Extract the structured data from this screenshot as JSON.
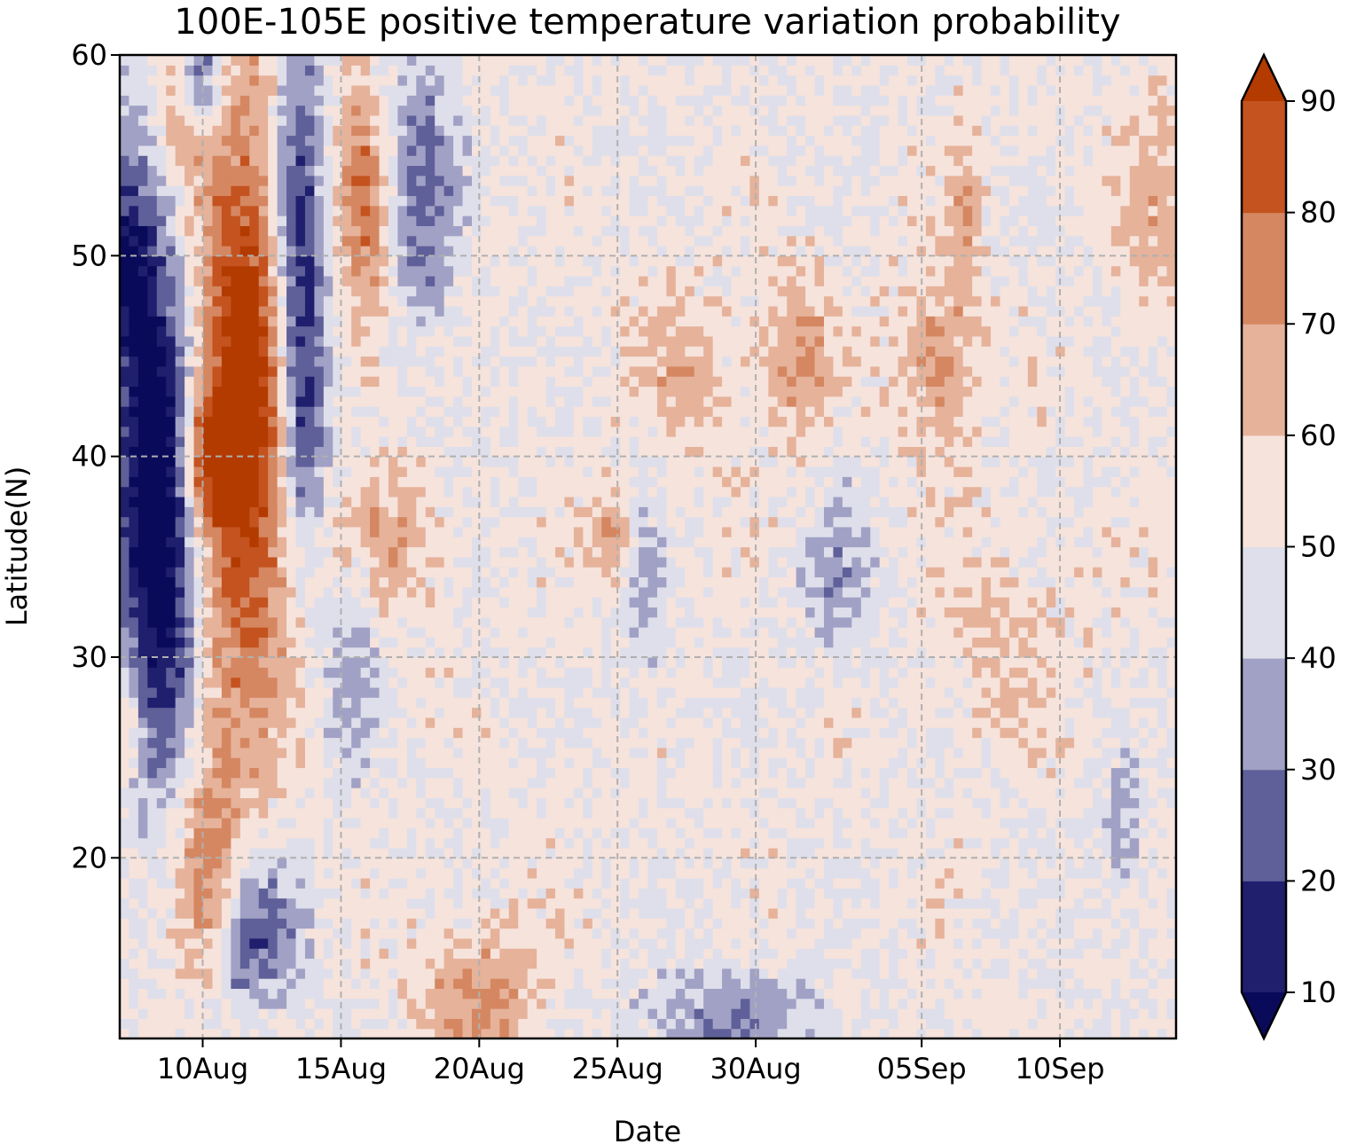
{
  "chart_data": {
    "type": "heatmap",
    "title": "100E-105E positive temperature variation probability",
    "xlabel": "Date",
    "ylabel": "Latitude(N)",
    "x_ticks": [
      {
        "label": "10Aug",
        "day": 3
      },
      {
        "label": "15Aug",
        "day": 8
      },
      {
        "label": "20Aug",
        "day": 13
      },
      {
        "label": "25Aug",
        "day": 18
      },
      {
        "label": "30Aug",
        "day": 23
      },
      {
        "label": "05Sep",
        "day": 29
      },
      {
        "label": "10Sep",
        "day": 34
      }
    ],
    "xlim_days": [
      0,
      38.2
    ],
    "x_origin_date": "07Aug",
    "y_ticks": [
      20,
      30,
      40,
      50,
      60
    ],
    "ylim": [
      11,
      60
    ],
    "grid": true,
    "colorbar": {
      "levels": [
        10,
        20,
        30,
        40,
        50,
        60,
        70,
        80,
        90
      ],
      "tick_labels": [
        "10",
        "20",
        "30",
        "40",
        "50",
        "60",
        "70",
        "80",
        "90"
      ],
      "colors": [
        "#0a0a5a",
        "#1f1f6e",
        "#5f5f99",
        "#a1a1c6",
        "#dedfea",
        "#f6e3dc",
        "#e6b29a",
        "#d58761",
        "#c4531f",
        "#b33b00"
      ],
      "extend": "both"
    },
    "blobs": [
      {
        "x": 1.0,
        "y": 40,
        "sx": 1.0,
        "sy": 10,
        "v": -40
      },
      {
        "x": 1.8,
        "y": 35,
        "sx": 0.8,
        "sy": 7,
        "v": -30
      },
      {
        "x": 0.3,
        "y": 50,
        "sx": 0.7,
        "sy": 4,
        "v": -25
      },
      {
        "x": 2.2,
        "y": 58,
        "sx": 0.6,
        "sy": 2.5,
        "v": 28
      },
      {
        "x": 2.8,
        "y": 59,
        "sx": 0.6,
        "sy": 2,
        "v": -40
      },
      {
        "x": 4.6,
        "y": 43,
        "sx": 1.3,
        "sy": 11,
        "v": 48
      },
      {
        "x": 3.4,
        "y": 40,
        "sx": 0.8,
        "sy": 2,
        "v": 35
      },
      {
        "x": 6.4,
        "y": 51,
        "sx": 0.7,
        "sy": 8,
        "v": -42
      },
      {
        "x": 6.7,
        "y": 41,
        "sx": 0.6,
        "sy": 5,
        "v": -25
      },
      {
        "x": 0.1,
        "y": 27,
        "sx": 0.5,
        "sy": 2,
        "v": 20
      },
      {
        "x": 3.2,
        "y": 20,
        "sx": 0.8,
        "sy": 4,
        "v": 20
      },
      {
        "x": 5.5,
        "y": 17,
        "sx": 1.0,
        "sy": 3,
        "v": -20
      },
      {
        "x": 4.5,
        "y": 15,
        "sx": 0.6,
        "sy": 2,
        "v": -20
      },
      {
        "x": 8.8,
        "y": 52,
        "sx": 0.6,
        "sy": 5,
        "v": 25
      },
      {
        "x": 11.0,
        "y": 53,
        "sx": 0.9,
        "sy": 5,
        "v": -25
      },
      {
        "x": 8.4,
        "y": 30,
        "sx": 0.7,
        "sy": 5,
        "v": -15
      },
      {
        "x": 9.6,
        "y": 36,
        "sx": 1.5,
        "sy": 2.5,
        "v": 15
      },
      {
        "x": 13.0,
        "y": 13,
        "sx": 1.5,
        "sy": 2.5,
        "v": 20
      },
      {
        "x": 17.8,
        "y": 36,
        "sx": 0.7,
        "sy": 1.5,
        "v": 18
      },
      {
        "x": 19.0,
        "y": 33,
        "sx": 0.5,
        "sy": 4,
        "v": -14
      },
      {
        "x": 20.5,
        "y": 44,
        "sx": 1.3,
        "sy": 3,
        "v": 12
      },
      {
        "x": 24.5,
        "y": 45,
        "sx": 0.9,
        "sy": 3,
        "v": 18
      },
      {
        "x": 26.0,
        "y": 34,
        "sx": 1.0,
        "sy": 3,
        "v": -16
      },
      {
        "x": 22.0,
        "y": 12,
        "sx": 2.5,
        "sy": 1.8,
        "v": -20
      },
      {
        "x": 29.6,
        "y": 45,
        "sx": 1.0,
        "sy": 3,
        "v": 20
      },
      {
        "x": 30.6,
        "y": 52,
        "sx": 0.4,
        "sy": 3,
        "v": 15
      },
      {
        "x": 37.5,
        "y": 52,
        "sx": 1.0,
        "sy": 4,
        "v": 12
      },
      {
        "x": 36.2,
        "y": 21,
        "sx": 0.5,
        "sy": 2.5,
        "v": -18
      },
      {
        "x": 32.0,
        "y": 31,
        "sx": 2.0,
        "sy": 4,
        "v": 7
      }
    ]
  }
}
